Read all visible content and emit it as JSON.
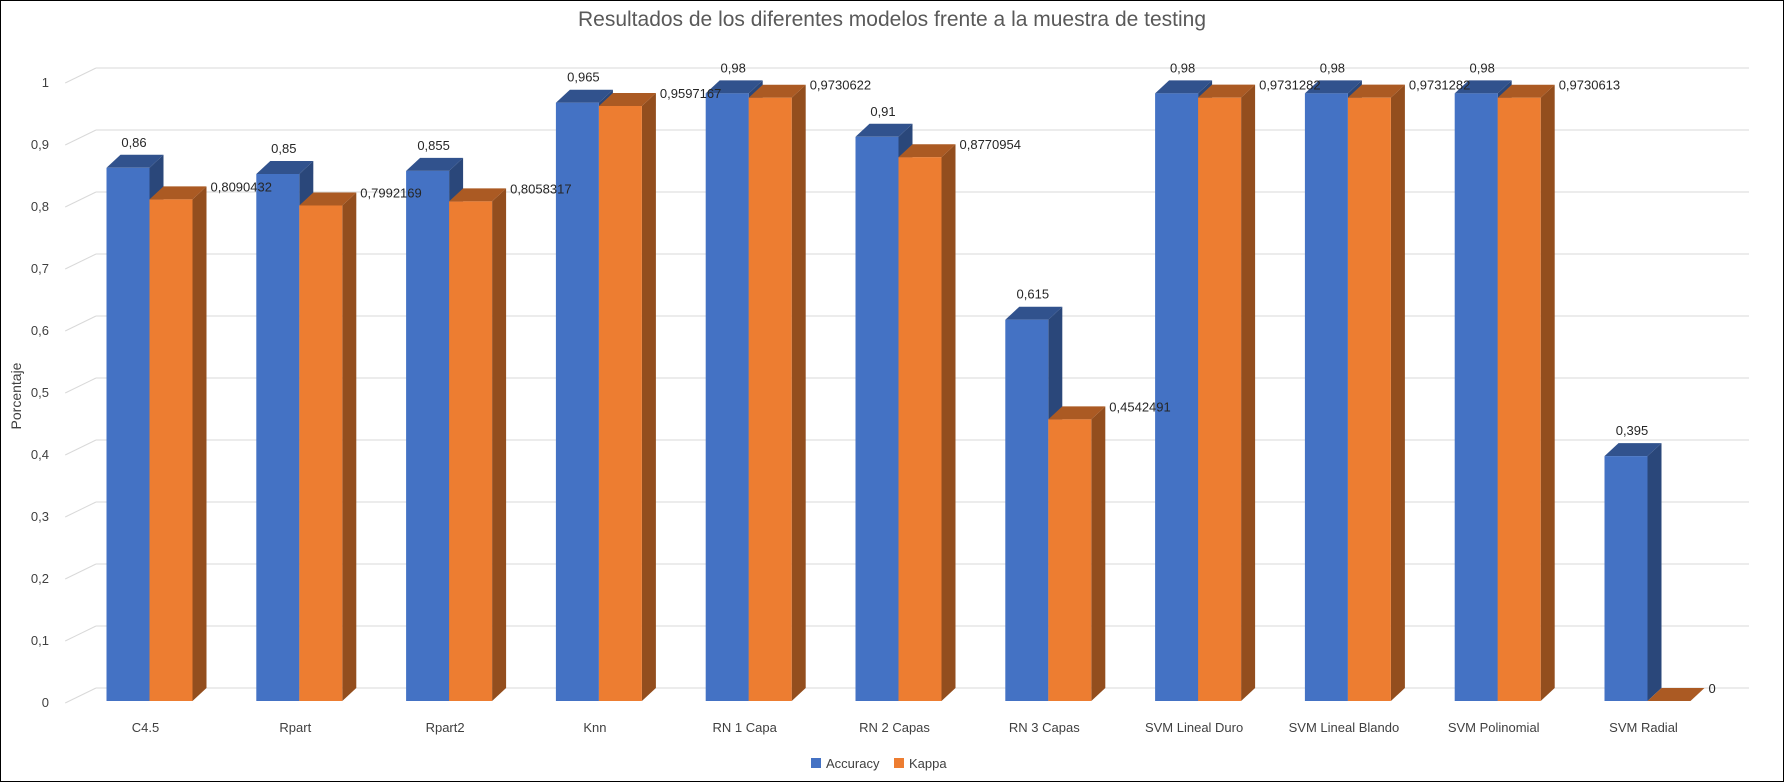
{
  "chart_data": {
    "type": "bar",
    "title": "Resultados de los diferentes modelos frente a la muestra de testing",
    "xlabel": "",
    "ylabel": "Porcentaje",
    "ylim": [
      0,
      1
    ],
    "yticks": [
      "0",
      "0,1",
      "0,2",
      "0,3",
      "0,4",
      "0,5",
      "0,6",
      "0,7",
      "0,8",
      "0,9",
      "1"
    ],
    "grid": true,
    "legend": "bottom",
    "categories": [
      "C4.5",
      "Rpart",
      "Rpart2",
      "Knn",
      "RN 1 Capa",
      "RN 2 Capas",
      "RN 3 Capas",
      "SVM Lineal Duro",
      "SVM Lineal Blando",
      "SVM Polinomial",
      "SVM Radial"
    ],
    "series": [
      {
        "name": "Accuracy",
        "color": "#4472C4",
        "values": [
          0.86,
          0.85,
          0.855,
          0.965,
          0.98,
          0.91,
          0.615,
          0.98,
          0.98,
          0.98,
          0.395
        ],
        "labels": [
          "0,86",
          "0,85",
          "0,855",
          "0,965",
          "0,98",
          "0,91",
          "0,615",
          "0,98",
          "0,98",
          "0,98",
          "0,395"
        ]
      },
      {
        "name": "Kappa",
        "color": "#ED7D31",
        "values": [
          0.8090432,
          0.7992169,
          0.8058317,
          0.9597167,
          0.9730622,
          0.8770954,
          0.4542491,
          0.9731282,
          0.9731282,
          0.9730613,
          0
        ],
        "labels": [
          "0,8090432",
          "0,7992169",
          "0,8058317",
          "0,9597167",
          "0,9730622",
          "0,8770954",
          "0,4542491",
          "0,9731282",
          "0,9731282",
          "0,9730613",
          "0"
        ]
      }
    ]
  }
}
